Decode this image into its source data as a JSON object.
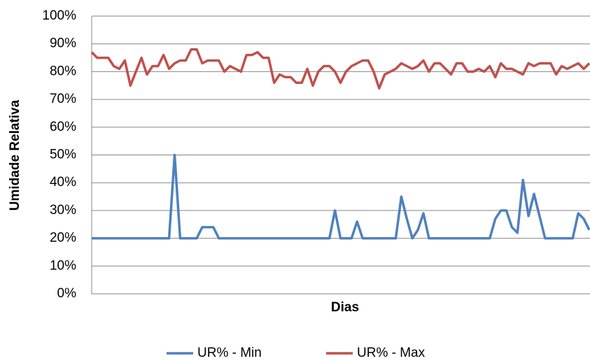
{
  "chart_data": {
    "type": "line",
    "xlabel": "Dias",
    "ylabel": "Umidade Relativa",
    "categories": [
      null,
      null,
      null,
      null,
      null,
      null,
      null,
      null,
      null,
      null,
      null,
      null,
      null,
      null,
      null,
      null,
      null,
      null,
      null,
      null,
      null,
      null,
      null,
      null,
      null,
      null,
      null,
      null,
      null,
      null,
      null,
      null,
      null,
      null,
      null,
      null,
      null,
      null,
      null,
      null,
      null,
      null,
      null,
      null,
      null,
      null,
      null,
      null,
      null,
      null,
      null,
      null,
      null,
      null,
      null,
      null,
      null,
      null,
      null,
      null,
      null,
      null,
      null,
      null,
      null,
      null,
      null,
      null,
      null,
      null,
      null,
      null,
      null,
      null,
      null,
      null,
      null,
      null,
      null,
      null,
      null,
      null,
      null,
      null,
      null,
      null,
      null,
      null,
      null,
      null,
      null
    ],
    "series": [
      {
        "name": "UR% - Min",
        "color": "#4f81bd",
        "values": [
          20,
          20,
          20,
          20,
          20,
          20,
          20,
          20,
          20,
          20,
          20,
          20,
          20,
          20,
          20,
          50,
          20,
          20,
          20,
          20,
          24,
          24,
          24,
          20,
          20,
          20,
          20,
          20,
          20,
          20,
          20,
          20,
          20,
          20,
          20,
          20,
          20,
          20,
          20,
          20,
          20,
          20,
          20,
          20,
          30,
          20,
          20,
          20,
          26,
          20,
          20,
          20,
          20,
          20,
          20,
          20,
          35,
          27,
          20,
          23,
          29,
          20,
          20,
          20,
          20,
          20,
          20,
          20,
          20,
          20,
          20,
          20,
          20,
          27,
          30,
          30,
          24,
          22,
          41,
          28,
          36,
          28,
          20,
          20,
          20,
          20,
          20,
          20,
          29,
          27,
          23
        ]
      },
      {
        "name": "UR% - Max",
        "color": "#c0504d",
        "values": [
          87,
          85,
          85,
          85,
          82,
          81,
          84,
          75,
          80,
          85,
          79,
          82,
          82,
          86,
          81,
          83,
          84,
          84,
          88,
          88,
          83,
          84,
          84,
          84,
          80,
          82,
          81,
          80,
          86,
          86,
          87,
          85,
          85,
          76,
          79,
          78,
          78,
          76,
          76,
          81,
          75,
          80,
          82,
          82,
          80,
          76,
          80,
          82,
          83,
          84,
          84,
          80,
          74,
          79,
          80,
          81,
          83,
          82,
          81,
          82,
          84,
          80,
          83,
          83,
          81,
          79,
          83,
          83,
          80,
          80,
          81,
          80,
          82,
          78,
          83,
          81,
          81,
          80,
          79,
          83,
          82,
          83,
          83,
          83,
          79,
          82,
          81,
          82,
          83,
          81,
          83
        ]
      }
    ],
    "ylim": [
      0,
      100
    ],
    "yticks": [
      {
        "value": 0,
        "label": "0%"
      },
      {
        "value": 10,
        "label": "10%"
      },
      {
        "value": 20,
        "label": "20%"
      },
      {
        "value": 30,
        "label": "30%"
      },
      {
        "value": 40,
        "label": "40%"
      },
      {
        "value": 50,
        "label": "50%"
      },
      {
        "value": 60,
        "label": "60%"
      },
      {
        "value": 70,
        "label": "70%"
      },
      {
        "value": 80,
        "label": "80%"
      },
      {
        "value": 90,
        "label": "90%"
      },
      {
        "value": 100,
        "label": "100%"
      }
    ],
    "grid": true,
    "legend": "bottom"
  }
}
